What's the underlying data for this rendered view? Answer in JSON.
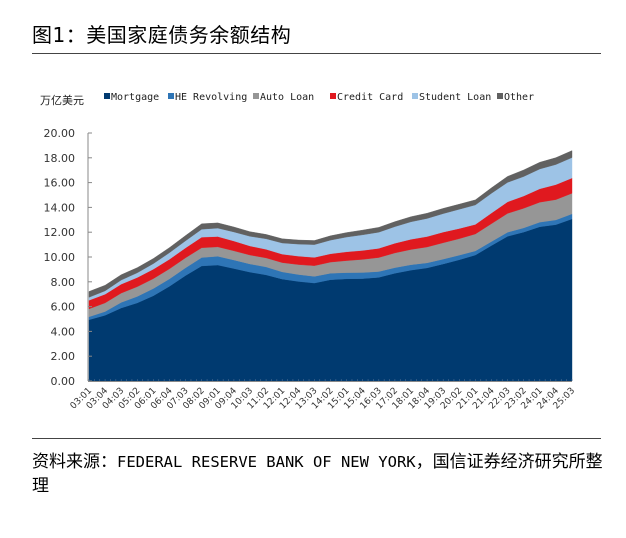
{
  "figure": {
    "title": "图1：美国家庭债务余额结构",
    "source_prefix": "资料来源：",
    "source_org": "FEDERAL RESERVE BANK OF NEW YORK",
    "source_suffix": "，国信证券经济研究所整理"
  },
  "chart_data": {
    "type": "area",
    "stacked": true,
    "title": "美国家庭债务余额结构",
    "ylabel": "万亿美元",
    "xlabel": "",
    "ylim": [
      0,
      20
    ],
    "yticks": [
      0,
      2,
      4,
      6,
      8,
      10,
      12,
      14,
      16,
      18,
      20
    ],
    "ytick_labels": [
      "0.00",
      "2.00",
      "4.00",
      "6.00",
      "8.00",
      "10.00",
      "12.00",
      "14.00",
      "16.00",
      "18.00",
      "20.00"
    ],
    "grid": false,
    "legend_position": "top",
    "categories": [
      "03:01",
      "03:04",
      "04:03",
      "05:02",
      "06:01",
      "06:04",
      "07:03",
      "08:02",
      "09:01",
      "09:04",
      "10:03",
      "11:02",
      "12:01",
      "12:04",
      "13:03",
      "14:02",
      "15:01",
      "15:04",
      "16:03",
      "17:02",
      "18:01",
      "18:04",
      "19:03",
      "20:02",
      "21:01",
      "21:04",
      "22:03",
      "23:02",
      "24:01",
      "24:04",
      "25:03"
    ],
    "series": [
      {
        "name": "Mortgage",
        "color": "#003a70",
        "values": [
          4.94,
          5.3,
          5.89,
          6.3,
          6.88,
          7.64,
          8.51,
          9.28,
          9.35,
          9.07,
          8.78,
          8.56,
          8.22,
          8.03,
          7.9,
          8.17,
          8.24,
          8.26,
          8.36,
          8.69,
          8.94,
          9.12,
          9.44,
          9.78,
          10.16,
          10.93,
          11.67,
          12.01,
          12.44,
          12.61,
          13.07
        ]
      },
      {
        "name": "HE Revolving",
        "color": "#2e75b6",
        "values": [
          0.24,
          0.3,
          0.45,
          0.52,
          0.58,
          0.6,
          0.62,
          0.68,
          0.71,
          0.69,
          0.66,
          0.64,
          0.58,
          0.56,
          0.54,
          0.52,
          0.5,
          0.49,
          0.47,
          0.45,
          0.44,
          0.41,
          0.39,
          0.37,
          0.33,
          0.32,
          0.33,
          0.34,
          0.37,
          0.38,
          0.41
        ]
      },
      {
        "name": "Auto Loan",
        "color": "#969696",
        "values": [
          0.64,
          0.7,
          0.75,
          0.79,
          0.8,
          0.81,
          0.81,
          0.79,
          0.76,
          0.74,
          0.72,
          0.73,
          0.75,
          0.8,
          0.86,
          0.9,
          0.97,
          1.06,
          1.13,
          1.19,
          1.23,
          1.28,
          1.32,
          1.33,
          1.37,
          1.44,
          1.52,
          1.58,
          1.61,
          1.64,
          1.66
        ]
      },
      {
        "name": "Credit Card",
        "color": "#e0191f",
        "values": [
          0.69,
          0.7,
          0.72,
          0.74,
          0.76,
          0.77,
          0.8,
          0.85,
          0.83,
          0.79,
          0.73,
          0.69,
          0.68,
          0.68,
          0.67,
          0.67,
          0.71,
          0.72,
          0.74,
          0.78,
          0.82,
          0.84,
          0.86,
          0.82,
          0.77,
          0.86,
          0.93,
          0.99,
          1.08,
          1.21,
          1.23
        ]
      },
      {
        "name": "Student Loan",
        "color": "#9dc3e6",
        "values": [
          0.24,
          0.27,
          0.33,
          0.38,
          0.45,
          0.53,
          0.57,
          0.64,
          0.68,
          0.73,
          0.78,
          0.85,
          0.9,
          0.97,
          1.03,
          1.1,
          1.19,
          1.26,
          1.3,
          1.34,
          1.41,
          1.46,
          1.49,
          1.55,
          1.57,
          1.59,
          1.57,
          1.57,
          1.6,
          1.62,
          1.65
        ]
      },
      {
        "name": "Other",
        "color": "#616161",
        "values": [
          0.47,
          0.45,
          0.43,
          0.41,
          0.41,
          0.41,
          0.42,
          0.44,
          0.42,
          0.4,
          0.37,
          0.35,
          0.34,
          0.33,
          0.33,
          0.35,
          0.36,
          0.38,
          0.39,
          0.4,
          0.41,
          0.42,
          0.42,
          0.41,
          0.41,
          0.44,
          0.48,
          0.53,
          0.54,
          0.55,
          0.56
        ]
      }
    ]
  }
}
